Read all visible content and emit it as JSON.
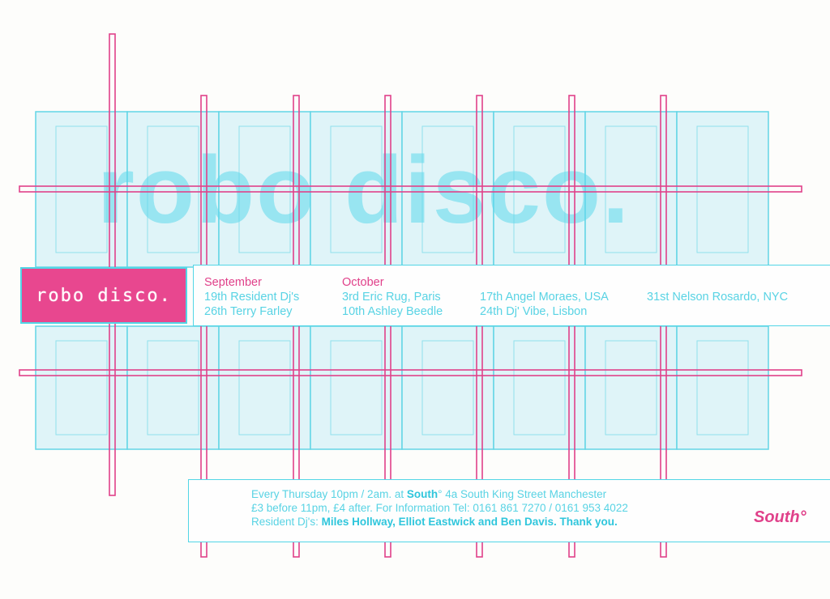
{
  "brand": {
    "name": "robo disco.",
    "watermark": "robo disco."
  },
  "schedule": {
    "september": {
      "month": "September",
      "dates": [
        "19th Resident Dj's",
        "26th Terry Farley"
      ]
    },
    "october": {
      "month": "October",
      "dates_col1": [
        "3rd Eric Rug, Paris",
        "10th Ashley Beedle"
      ],
      "dates_col2": [
        "17th Angel Moraes, USA",
        "24th Dj' Vibe, Lisbon"
      ],
      "dates_col3": [
        "31st Nelson Rosardo, NYC"
      ]
    }
  },
  "info": {
    "line1_a": "Every Thursday 10pm / 2am. at ",
    "line1_venue": "South",
    "line1_b": "° 4a South King Street Manchester",
    "line2": "£3 before 11pm, £4 after. For Information Tel: 0161 861 7270 / 0161 953 4022",
    "line3_a": "Resident Dj's: ",
    "line3_b": "Miles Hollway, Elliot Eastwick and Ben Davis. Thank you."
  },
  "venue_logo": "South°",
  "colors": {
    "pink": "#e0418a",
    "cyan": "#52d6e6",
    "light_cyan": "#d6f3f7",
    "paper": "#fdfdfb"
  }
}
